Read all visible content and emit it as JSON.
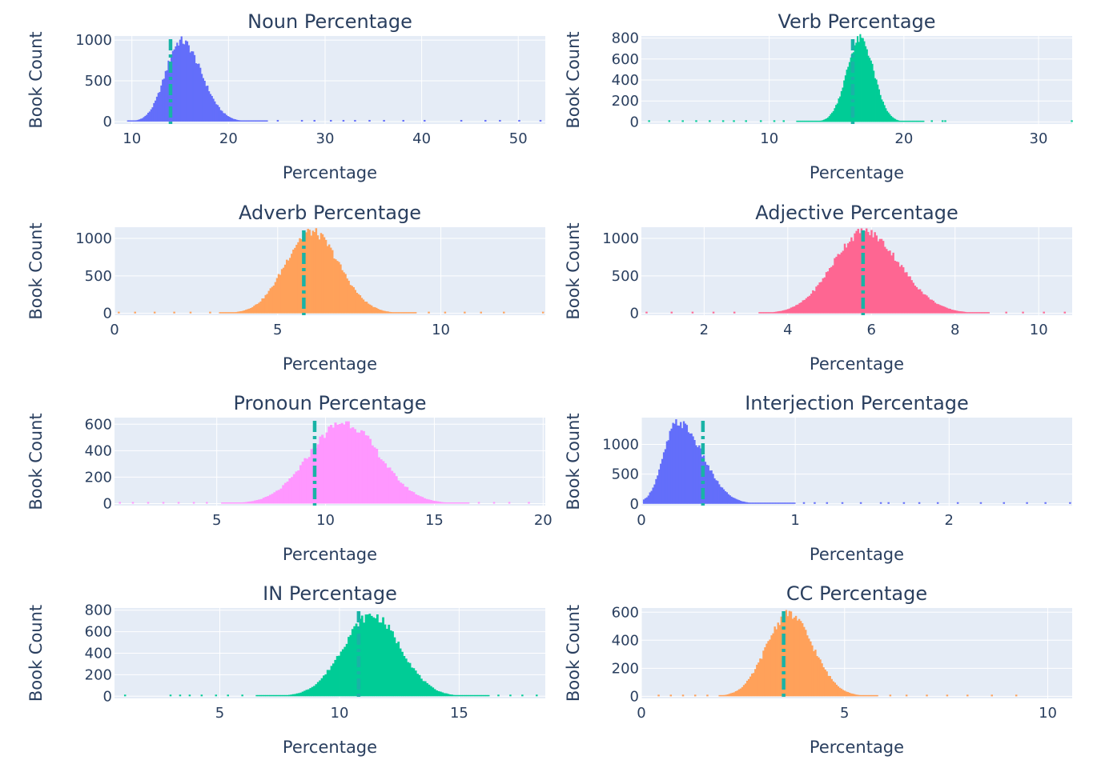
{
  "chart_data": [
    {
      "type": "bar",
      "title": "Noun Percentage",
      "xlabel": "Percentage",
      "ylabel": "Book Count",
      "color": "#636efa",
      "xlim": [
        8.2,
        52.8
      ],
      "ylim": [
        -30,
        1050
      ],
      "xticks": [
        10,
        20,
        30,
        40,
        50
      ],
      "xtick_labels": [
        "10",
        "20",
        "30",
        "40",
        "50"
      ],
      "yticks": [
        0,
        500,
        1000
      ],
      "ytick_labels": [
        "0",
        "500",
        "1000"
      ],
      "distribution": {
        "mode": 15.0,
        "sd_left": 1.6,
        "sd_right": 2.1,
        "peak": 1000,
        "bin_width": 0.15,
        "range": [
          9.5,
          24
        ]
      },
      "sparse_x": [
        25,
        27.5,
        28.8,
        30.5,
        31.8,
        33,
        34.5,
        36,
        38,
        40.2,
        44,
        46.5,
        48,
        50,
        52.2
      ],
      "mean_line": {
        "x": 14.0,
        "color": "#19b3a6"
      }
    },
    {
      "type": "bar",
      "title": "Verb Percentage",
      "xlabel": "Percentage",
      "ylabel": "Book Count",
      "color": "#00cc96",
      "xlim": [
        0.5,
        32.5
      ],
      "ylim": [
        -20,
        820
      ],
      "xticks": [
        10,
        20,
        30
      ],
      "xtick_labels": [
        "10",
        "20",
        "30"
      ],
      "yticks": [
        0,
        200,
        400,
        600,
        800
      ],
      "ytick_labels": [
        "0",
        "200",
        "400",
        "600",
        "800"
      ],
      "distribution": {
        "mode": 16.7,
        "sd_left": 1.0,
        "sd_right": 1.0,
        "peak": 800,
        "bin_width": 0.1,
        "range": [
          12,
          21.5
        ]
      },
      "sparse_x": [
        1,
        2.5,
        3.5,
        4.5,
        5.5,
        6.5,
        7.3,
        8.2,
        9.3,
        10.3,
        11,
        22,
        22.8,
        23,
        32.4
      ],
      "mean_line": {
        "x": 16.2,
        "color": "#19b3a6"
      }
    },
    {
      "type": "bar",
      "title": "Adverb Percentage",
      "xlabel": "Percentage",
      "ylabel": "Book Count",
      "color": "#ffa15a",
      "xlim": [
        0,
        13.2
      ],
      "ylim": [
        -25,
        1150
      ],
      "xticks": [
        0,
        5,
        10
      ],
      "xtick_labels": [
        "0",
        "5",
        "10"
      ],
      "yticks": [
        0,
        500,
        1000
      ],
      "ytick_labels": [
        "0",
        "500",
        "1000"
      ],
      "distribution": {
        "mode": 6.0,
        "sd_left": 0.8,
        "sd_right": 0.85,
        "peak": 1100,
        "bin_width": 0.05,
        "range": [
          3.2,
          9.2
        ]
      },
      "sparse_x": [
        0.1,
        0.6,
        1.2,
        1.8,
        2.3,
        2.9,
        9.6,
        10.1,
        10.7,
        11.2,
        11.9,
        13.1
      ],
      "mean_line": {
        "x": 5.8,
        "color": "#19b3a6"
      }
    },
    {
      "type": "bar",
      "title": "Adjective Percentage",
      "xlabel": "Percentage",
      "ylabel": "Book Count",
      "color": "#fe6692",
      "xlim": [
        0.5,
        10.8
      ],
      "ylim": [
        -25,
        1150
      ],
      "xticks": [
        2,
        4,
        6,
        8,
        10
      ],
      "xtick_labels": [
        "2",
        "4",
        "6",
        "8",
        "10"
      ],
      "yticks": [
        0,
        500,
        1000
      ],
      "ytick_labels": [
        "0",
        "500",
        "1000"
      ],
      "distribution": {
        "mode": 5.8,
        "sd_left": 0.75,
        "sd_right": 0.85,
        "peak": 1100,
        "bin_width": 0.04,
        "range": [
          3.3,
          8.8
        ]
      },
      "sparse_x": [
        0.6,
        1.2,
        1.7,
        2.2,
        2.7,
        9.2,
        9.6,
        10.1,
        10.6
      ],
      "mean_line": {
        "x": 5.8,
        "color": "#19b3a6"
      }
    },
    {
      "type": "bar",
      "title": "Pronoun Percentage",
      "xlabel": "Percentage",
      "ylabel": "Book Count",
      "color": "#ff97ff",
      "xlim": [
        0.3,
        20.1
      ],
      "ylim": [
        -15,
        650
      ],
      "xticks": [
        5,
        10,
        15,
        20
      ],
      "xtick_labels": [
        "5",
        "10",
        "15",
        "20"
      ],
      "yticks": [
        0,
        200,
        400,
        600
      ],
      "ytick_labels": [
        "0",
        "200",
        "400",
        "600"
      ],
      "distribution": {
        "mode": 10.8,
        "sd_left": 1.6,
        "sd_right": 1.6,
        "peak": 620,
        "bin_width": 0.1,
        "range": [
          5.2,
          16.5
        ]
      },
      "sparse_x": [
        0.5,
        1.1,
        1.8,
        2.5,
        3.2,
        3.9,
        4.5,
        17,
        17.7,
        18.4,
        19.3
      ],
      "mean_line": {
        "x": 9.5,
        "color": "#19b3a6"
      }
    },
    {
      "type": "bar",
      "title": "Interjection Percentage",
      "xlabel": "Percentage",
      "ylabel": "Book Count",
      "color": "#636efa",
      "xlim": [
        0,
        2.8
      ],
      "ylim": [
        -30,
        1450
      ],
      "xticks": [
        0,
        1,
        2
      ],
      "xtick_labels": [
        "0",
        "1",
        "2"
      ],
      "yticks": [
        0,
        500,
        1000
      ],
      "ytick_labels": [
        "0",
        "500",
        "1000"
      ],
      "distribution": {
        "mode": 0.23,
        "sd_left": 0.09,
        "sd_right": 0.16,
        "peak": 1380,
        "bin_width": 0.01,
        "range": [
          0.01,
          1.0
        ]
      },
      "sparse_x": [
        1.05,
        1.12,
        1.2,
        1.3,
        1.42,
        1.55,
        1.6,
        1.7,
        1.8,
        1.92,
        2.05,
        2.2,
        2.35,
        2.5,
        2.62,
        2.78
      ],
      "mean_line": {
        "x": 0.4,
        "color": "#19b3a6"
      }
    },
    {
      "type": "bar",
      "title": "IN Percentage",
      "xlabel": "Percentage",
      "ylabel": "Book Count",
      "color": "#00cc96",
      "xlim": [
        0.6,
        18.6
      ],
      "ylim": [
        -20,
        820
      ],
      "xticks": [
        5,
        10,
        15
      ],
      "xtick_labels": [
        "5",
        "10",
        "15"
      ],
      "yticks": [
        0,
        200,
        400,
        600,
        800
      ],
      "ytick_labels": [
        "0",
        "200",
        "400",
        "600",
        "800"
      ],
      "distribution": {
        "mode": 11.3,
        "sd_left": 1.2,
        "sd_right": 1.2,
        "peak": 760,
        "bin_width": 0.08,
        "range": [
          6.5,
          16.2
        ]
      },
      "sparse_x": [
        1,
        2.9,
        3.3,
        3.7,
        4.2,
        4.8,
        5.3,
        5.9,
        16.6,
        17.1,
        17.6,
        18.2
      ],
      "mean_line": {
        "x": 10.8,
        "color": "#19b3a6"
      }
    },
    {
      "type": "bar",
      "title": "CC Percentage",
      "xlabel": "Percentage",
      "ylabel": "Book Count",
      "color": "#ffa15a",
      "xlim": [
        0,
        10.6
      ],
      "ylim": [
        -15,
        630
      ],
      "xticks": [
        0,
        5,
        10
      ],
      "xtick_labels": [
        "0",
        "5",
        "10"
      ],
      "yticks": [
        0,
        200,
        400,
        600
      ],
      "ytick_labels": [
        "0",
        "200",
        "400",
        "600"
      ],
      "distribution": {
        "mode": 3.6,
        "sd_left": 0.55,
        "sd_right": 0.6,
        "peak": 590,
        "bin_width": 0.04,
        "range": [
          1.9,
          5.8
        ]
      },
      "sparse_x": [
        0.4,
        0.7,
        1.0,
        1.3,
        1.6,
        6.1,
        6.5,
        7.0,
        7.5,
        8.0,
        8.6,
        9.2
      ],
      "mean_line": {
        "x": 3.5,
        "color": "#19b3a6"
      }
    }
  ]
}
